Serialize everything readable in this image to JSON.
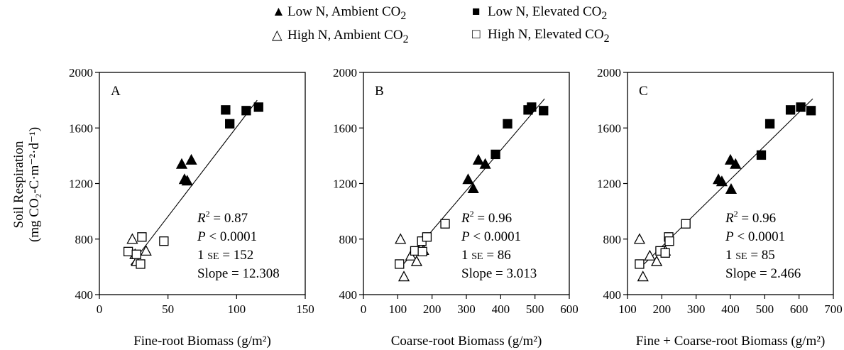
{
  "legend": [
    {
      "label": "Low N, Ambient CO",
      "sub": "2",
      "marker": "filled-triangle"
    },
    {
      "label": "High N, Ambient CO",
      "sub": "2",
      "marker": "open-triangle"
    },
    {
      "label": "Low N, Elevated CO",
      "sub": "2",
      "marker": "filled-square"
    },
    {
      "label": "High N, Elevated CO",
      "sub": "2",
      "marker": "open-square"
    }
  ],
  "ylabel_line1": "Soil Respiration",
  "ylabel_line2": "(mg CO₂-C·m⁻²·d⁻¹)",
  "chart_data": [
    {
      "type": "scatter",
      "panel": "A",
      "xlabel": "Fine-root Biomass (g/m²)",
      "xlim": [
        0,
        150
      ],
      "xticks": [
        0,
        50,
        100,
        150
      ],
      "ylim": [
        400,
        2000
      ],
      "yticks": [
        400,
        800,
        1200,
        1600,
        2000
      ],
      "series": [
        {
          "name": "Low N, Ambient CO2",
          "marker": "filled-triangle",
          "x": [
            60,
            62,
            64,
            67
          ],
          "y": [
            1340,
            1230,
            1220,
            1370
          ]
        },
        {
          "name": "Low N, Elevated CO2",
          "marker": "filled-square",
          "x": [
            92,
            95,
            107,
            116
          ],
          "y": [
            1730,
            1630,
            1725,
            1750
          ]
        },
        {
          "name": "High N, Ambient CO2",
          "marker": "open-triangle",
          "x": [
            24,
            26,
            27,
            34
          ],
          "y": [
            800,
            690,
            640,
            715
          ]
        },
        {
          "name": "High N, Elevated CO2",
          "marker": "open-square",
          "x": [
            21,
            27,
            30,
            31,
            47
          ],
          "y": [
            710,
            690,
            620,
            815,
            785
          ]
        }
      ],
      "fit_line": {
        "x": [
          23,
          115
        ],
        "y": [
          615,
          1800
        ]
      },
      "stats": {
        "r2": " = 0.87",
        "p": " < 0.0001",
        "se": " = 152",
        "slope": "Slope = 12.308"
      }
    },
    {
      "type": "scatter",
      "panel": "B",
      "xlabel": "Coarse-root Biomass (g/m²)",
      "xlim": [
        0,
        600
      ],
      "xticks": [
        0,
        100,
        200,
        300,
        400,
        500,
        600
      ],
      "ylim": [
        400,
        2000
      ],
      "yticks": [
        400,
        800,
        1200,
        1600,
        2000
      ],
      "series": [
        {
          "name": "Low N, Ambient CO2",
          "marker": "filled-triangle",
          "x": [
            305,
            320,
            335,
            355
          ],
          "y": [
            1230,
            1165,
            1370,
            1340
          ]
        },
        {
          "name": "Low N, Elevated CO2",
          "marker": "filled-square",
          "x": [
            385,
            420,
            480,
            490,
            525
          ],
          "y": [
            1410,
            1630,
            1730,
            1750,
            1725
          ]
        },
        {
          "name": "High N, Ambient CO2",
          "marker": "open-triangle",
          "x": [
            108,
            118,
            138,
            155,
            175
          ],
          "y": [
            800,
            530,
            680,
            640,
            720
          ]
        },
        {
          "name": "High N, Elevated CO2",
          "marker": "open-square",
          "x": [
            105,
            150,
            170,
            172,
            185,
            238
          ],
          "y": [
            620,
            715,
            785,
            710,
            815,
            910
          ]
        }
      ],
      "fit_line": {
        "x": [
          110,
          528
        ],
        "y": [
          600,
          1810
        ]
      },
      "stats": {
        "r2": " = 0.96",
        "p": " < 0.0001",
        "se": " = 86",
        "slope": "Slope = 3.013"
      }
    },
    {
      "type": "scatter",
      "panel": "C",
      "xlabel": "Fine + Coarse-root Biomass (g/m²)",
      "xlim": [
        100,
        700
      ],
      "xticks": [
        100,
        200,
        300,
        400,
        500,
        600,
        700
      ],
      "ylim": [
        400,
        2000
      ],
      "yticks": [
        400,
        800,
        1200,
        1600,
        2000
      ],
      "series": [
        {
          "name": "Low N, Ambient CO2",
          "marker": "filled-triangle",
          "x": [
            365,
            375,
            400,
            402,
            415
          ],
          "y": [
            1230,
            1215,
            1370,
            1160,
            1340
          ]
        },
        {
          "name": "Low N, Elevated CO2",
          "marker": "filled-square",
          "x": [
            490,
            515,
            575,
            605,
            635
          ],
          "y": [
            1405,
            1630,
            1730,
            1750,
            1725
          ]
        },
        {
          "name": "High N, Ambient CO2",
          "marker": "open-triangle",
          "x": [
            135,
            145,
            165,
            185,
            210
          ],
          "y": [
            800,
            530,
            680,
            640,
            715
          ]
        },
        {
          "name": "High N, Elevated CO2",
          "marker": "open-square",
          "x": [
            135,
            195,
            210,
            220,
            222,
            270
          ],
          "y": [
            620,
            715,
            700,
            815,
            785,
            910
          ]
        }
      ],
      "fit_line": {
        "x": [
          140,
          640
        ],
        "y": [
          600,
          1810
        ]
      },
      "stats": {
        "r2": " = 0.96",
        "p": " < 0.0001",
        "se": " = 85",
        "slope": "Slope = 2.466"
      }
    }
  ]
}
